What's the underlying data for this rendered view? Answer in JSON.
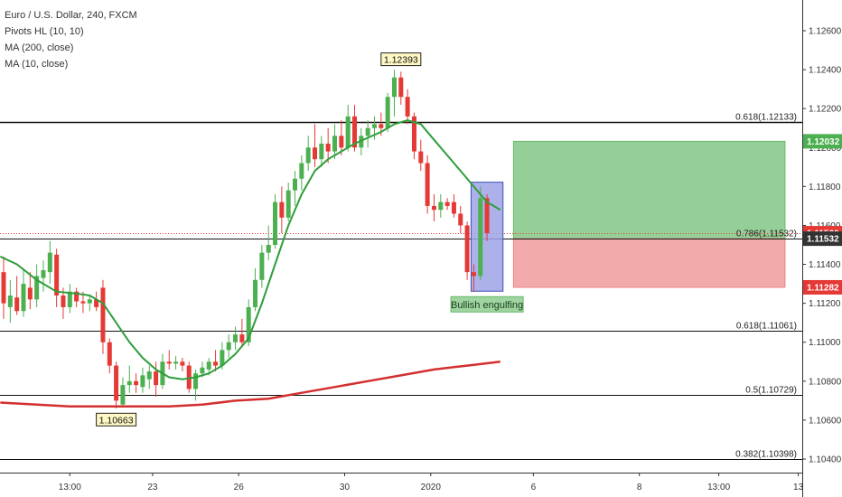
{
  "legend": {
    "symbol": "Euro / U.S. Dollar, 240, FXCM",
    "indicator1": "Pivots HL (10, 10)",
    "indicator2": "MA (200, close)",
    "indicator3": "MA (10, close)"
  },
  "chart_data": {
    "type": "candlestick",
    "ylim": [
      1.103,
      1.128
    ],
    "y_ticks": [
      "1.12600",
      "1.12400",
      "1.12200",
      "1.12000",
      "1.11800",
      "1.11600",
      "1.11400",
      "1.11200",
      "1.11000",
      "1.10800",
      "1.10600",
      "1.10400"
    ],
    "y_tick_values": [
      1.126,
      1.124,
      1.122,
      1.12,
      1.118,
      1.116,
      1.114,
      1.112,
      1.11,
      1.108,
      1.106,
      1.104
    ],
    "x_ticks": [
      {
        "label": "13:00",
        "i": 10
      },
      {
        "label": "23",
        "i": 22.5
      },
      {
        "label": "26",
        "i": 35.5
      },
      {
        "label": "30",
        "i": 51.5
      },
      {
        "label": "2020",
        "i": 64.5
      },
      {
        "label": "6",
        "i": 80
      },
      {
        "label": "8",
        "i": 96
      },
      {
        "label": "13:00",
        "i": 108
      },
      {
        "label": "13",
        "i": 120
      }
    ],
    "x_range": [
      -0.5,
      128
    ],
    "fib_levels": [
      {
        "label": "0.618(1.12133)",
        "value": 1.12133
      },
      {
        "label": "0.786(1.11532)",
        "value": 1.11532
      },
      {
        "label": "0.618(1.11061)",
        "value": 1.11061
      },
      {
        "label": "0.5(1.10729)",
        "value": 1.10729
      },
      {
        "label": "0.382(1.10398)",
        "value": 1.10398
      }
    ],
    "price_badges": [
      {
        "label": "1.12032",
        "value": 1.12032,
        "color": "#4caf50"
      },
      {
        "label": "1.11560",
        "value": 1.1156,
        "color": "#e53935"
      },
      {
        "label": "1.11532",
        "value": 1.11532,
        "color": "#333333"
      },
      {
        "label": "1.11282",
        "value": 1.11282,
        "color": "#e53935"
      }
    ],
    "last_price": 1.1156,
    "pivots": [
      {
        "label": "1.12393",
        "i": 60,
        "value": 1.12393,
        "position": "above"
      },
      {
        "label": "1.10663",
        "i": 17,
        "value": 1.10663,
        "position": "below"
      }
    ],
    "pattern": {
      "label": "Bullish engulfing",
      "i_start": 71,
      "i_end": 75,
      "low": 1.11262,
      "high": 1.11822
    },
    "position_box": {
      "i_start": 77,
      "i_end": 118,
      "entry": 1.11532,
      "target": 1.12032,
      "stop": 1.11282
    },
    "candles": [
      [
        1.1136,
        1.1144,
        1.1112,
        1.112
      ],
      [
        1.1118,
        1.1132,
        1.111,
        1.1124
      ],
      [
        1.1123,
        1.1134,
        1.1114,
        1.1116
      ],
      [
        1.1116,
        1.1138,
        1.1113,
        1.113
      ],
      [
        1.1128,
        1.1136,
        1.1117,
        1.1122
      ],
      [
        1.1122,
        1.114,
        1.1118,
        1.1134
      ],
      [
        1.1133,
        1.1142,
        1.1126,
        1.1137
      ],
      [
        1.1136,
        1.1152,
        1.113,
        1.1146
      ],
      [
        1.1145,
        1.1148,
        1.1118,
        1.1124
      ],
      [
        1.1124,
        1.1128,
        1.1112,
        1.1118
      ],
      [
        1.1118,
        1.113,
        1.1115,
        1.1126
      ],
      [
        1.1126,
        1.1128,
        1.1118,
        1.1121
      ],
      [
        1.1121,
        1.1126,
        1.1115,
        1.112
      ],
      [
        1.112,
        1.1124,
        1.1116,
        1.1122
      ],
      [
        1.1122,
        1.1126,
        1.1116,
        1.1118
      ],
      [
        1.1128,
        1.1132,
        1.1094,
        1.11
      ],
      [
        1.11,
        1.1102,
        1.1084,
        1.1088
      ],
      [
        1.1088,
        1.109,
        1.1066,
        1.107
      ],
      [
        1.1068,
        1.1082,
        1.1067,
        1.1078
      ],
      [
        1.1078,
        1.1088,
        1.1074,
        1.108
      ],
      [
        1.108,
        1.1084,
        1.1074,
        1.1078
      ],
      [
        1.1077,
        1.1087,
        1.1074,
        1.1083
      ],
      [
        1.1081,
        1.1088,
        1.1076,
        1.1085
      ],
      [
        1.1085,
        1.109,
        1.1072,
        1.1078
      ],
      [
        1.1078,
        1.1094,
        1.1076,
        1.109
      ],
      [
        1.109,
        1.1096,
        1.1086,
        1.1089
      ],
      [
        1.1089,
        1.1093,
        1.1086,
        1.109
      ],
      [
        1.109,
        1.1092,
        1.1085,
        1.1088
      ],
      [
        1.1088,
        1.109,
        1.1074,
        1.1076
      ],
      [
        1.1076,
        1.1086,
        1.107,
        1.1084
      ],
      [
        1.1084,
        1.109,
        1.1082,
        1.1087
      ],
      [
        1.1086,
        1.1092,
        1.1083,
        1.109
      ],
      [
        1.109,
        1.1096,
        1.1085,
        1.1088
      ],
      [
        1.1088,
        1.11,
        1.1086,
        1.1096
      ],
      [
        1.1096,
        1.1104,
        1.1092,
        1.11
      ],
      [
        1.11,
        1.1108,
        1.1096,
        1.1104
      ],
      [
        1.1104,
        1.1112,
        1.1098,
        1.11
      ],
      [
        1.11,
        1.1122,
        1.1098,
        1.1118
      ],
      [
        1.1118,
        1.1138,
        1.1116,
        1.1132
      ],
      [
        1.1132,
        1.115,
        1.1128,
        1.1146
      ],
      [
        1.1146,
        1.116,
        1.1142,
        1.115
      ],
      [
        1.115,
        1.1176,
        1.1148,
        1.1172
      ],
      [
        1.1172,
        1.118,
        1.1156,
        1.1164
      ],
      [
        1.1164,
        1.1182,
        1.1162,
        1.1178
      ],
      [
        1.1178,
        1.1188,
        1.117,
        1.1184
      ],
      [
        1.1184,
        1.1196,
        1.1178,
        1.1192
      ],
      [
        1.1192,
        1.1206,
        1.1188,
        1.12
      ],
      [
        1.12,
        1.1212,
        1.119,
        1.1194
      ],
      [
        1.1194,
        1.1206,
        1.119,
        1.1202
      ],
      [
        1.1202,
        1.121,
        1.1192,
        1.1198
      ],
      [
        1.1198,
        1.1212,
        1.1194,
        1.1206
      ],
      [
        1.1206,
        1.1214,
        1.1196,
        1.12
      ],
      [
        1.12,
        1.1222,
        1.1198,
        1.1216
      ],
      [
        1.1216,
        1.1222,
        1.1198,
        1.12
      ],
      [
        1.12,
        1.121,
        1.1196,
        1.1206
      ],
      [
        1.1206,
        1.1214,
        1.12,
        1.121
      ],
      [
        1.121,
        1.1216,
        1.1204,
        1.1212
      ],
      [
        1.1212,
        1.1218,
        1.1206,
        1.121
      ],
      [
        1.121,
        1.1228,
        1.1208,
        1.1226
      ],
      [
        1.1226,
        1.124,
        1.1216,
        1.1236
      ],
      [
        1.1236,
        1.1239,
        1.1222,
        1.1226
      ],
      [
        1.1226,
        1.123,
        1.1212,
        1.1216
      ],
      [
        1.1216,
        1.1218,
        1.1194,
        1.1198
      ],
      [
        1.1198,
        1.1204,
        1.1188,
        1.1192
      ],
      [
        1.1192,
        1.1196,
        1.1166,
        1.117
      ],
      [
        1.117,
        1.1176,
        1.1162,
        1.1168
      ],
      [
        1.1168,
        1.1176,
        1.1164,
        1.1172
      ],
      [
        1.1172,
        1.1174,
        1.1168,
        1.117
      ],
      [
        1.1172,
        1.1176,
        1.1164,
        1.1166
      ],
      [
        1.1166,
        1.117,
        1.1156,
        1.116
      ],
      [
        1.116,
        1.1162,
        1.1132,
        1.1136
      ],
      [
        1.1136,
        1.114,
        1.1126,
        1.1134
      ],
      [
        1.1134,
        1.118,
        1.1132,
        1.1174
      ],
      [
        1.1174,
        1.1176,
        1.1152,
        1.1156
      ]
    ],
    "ma10": [
      [
        -0.5,
        1.1144
      ],
      [
        2,
        1.114
      ],
      [
        5,
        1.1132
      ],
      [
        8,
        1.1126
      ],
      [
        11,
        1.1125
      ],
      [
        13,
        1.1124
      ],
      [
        15,
        1.112
      ],
      [
        17,
        1.111
      ],
      [
        19,
        1.11
      ],
      [
        21,
        1.1092
      ],
      [
        23,
        1.1086
      ],
      [
        25,
        1.1082
      ],
      [
        27,
        1.1081
      ],
      [
        29,
        1.1082
      ],
      [
        31,
        1.1084
      ],
      [
        33,
        1.1088
      ],
      [
        35,
        1.1094
      ],
      [
        37,
        1.1102
      ],
      [
        39,
        1.112
      ],
      [
        41,
        1.114
      ],
      [
        43,
        1.116
      ],
      [
        45,
        1.1176
      ],
      [
        47,
        1.1188
      ],
      [
        49,
        1.1194
      ],
      [
        51,
        1.1198
      ],
      [
        53,
        1.1202
      ],
      [
        55,
        1.1205
      ],
      [
        57,
        1.1208
      ],
      [
        59,
        1.1212
      ],
      [
        61,
        1.1214
      ],
      [
        63,
        1.1212
      ],
      [
        65,
        1.1204
      ],
      [
        67,
        1.1196
      ],
      [
        69,
        1.1188
      ],
      [
        71,
        1.118
      ],
      [
        73,
        1.1172
      ],
      [
        75,
        1.1168
      ]
    ],
    "ma200": [
      [
        -0.5,
        1.1069
      ],
      [
        5,
        1.1068
      ],
      [
        10,
        1.1067
      ],
      [
        15,
        1.1067
      ],
      [
        20,
        1.1067
      ],
      [
        25,
        1.1067
      ],
      [
        30,
        1.1068
      ],
      [
        35,
        1.107
      ],
      [
        40,
        1.1071
      ],
      [
        45,
        1.1074
      ],
      [
        50,
        1.1077
      ],
      [
        55,
        1.108
      ],
      [
        60,
        1.1083
      ],
      [
        65,
        1.1086
      ],
      [
        70,
        1.1088
      ],
      [
        75,
        1.109
      ]
    ]
  }
}
